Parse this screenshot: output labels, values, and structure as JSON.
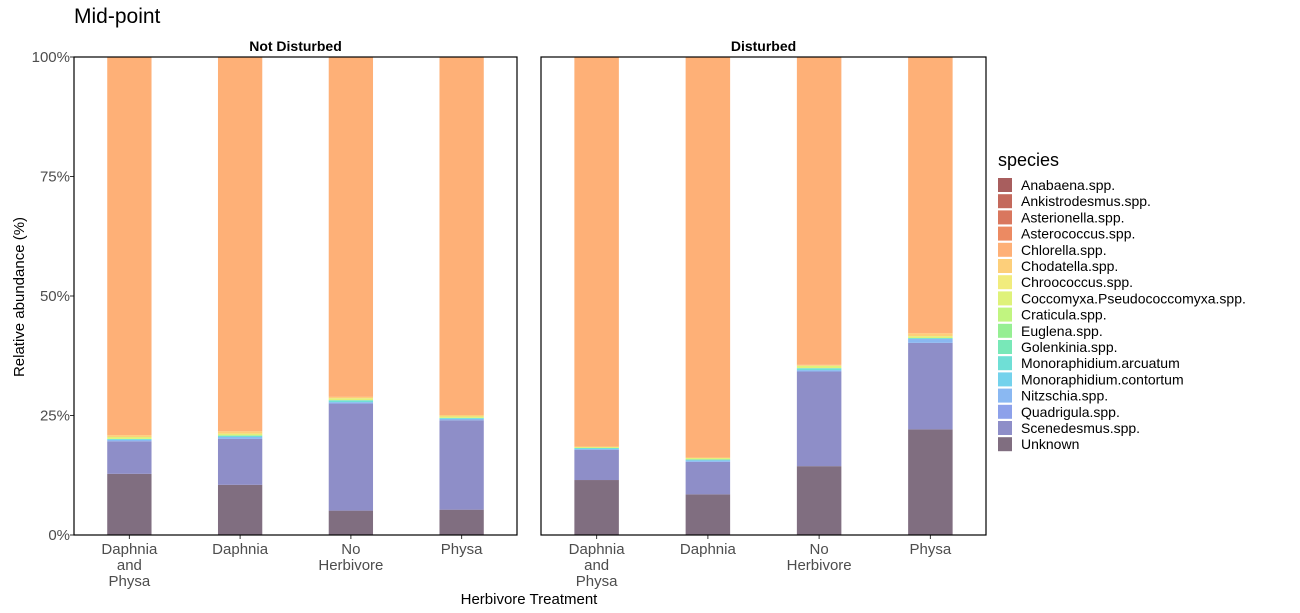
{
  "chart_data": {
    "type": "bar",
    "stacked": true,
    "title": "Mid-point",
    "xlabel": "Herbivore Treatment",
    "ylabel": "Relative abundance (%)",
    "ylim": [
      0,
      100
    ],
    "yticks": [
      "0%",
      "25%",
      "50%",
      "75%",
      "100%"
    ],
    "categories": [
      "Daphnia and Physa",
      "Daphnia",
      "No Herbivore",
      "Physa"
    ],
    "category_lines": [
      [
        "Daphnia",
        "and",
        "Physa"
      ],
      [
        "Daphnia"
      ],
      [
        "No",
        "Herbivore"
      ],
      [
        "Physa"
      ]
    ],
    "legend_title": "species",
    "legend_position": "right",
    "grid": false,
    "panels": [
      {
        "name": "Not Disturbed",
        "series": [
          {
            "name": "Unknown",
            "values": [
              12.8,
              10.5,
              5.1,
              5.3
            ]
          },
          {
            "name": "Scenedesmus.spp.",
            "values": [
              6.8,
              9.6,
              22.4,
              18.7
            ]
          },
          {
            "name": "Quadrigula.spp.",
            "values": [
              0.0,
              0.0,
              0.0,
              0.0
            ]
          },
          {
            "name": "Nitzschia.spp.",
            "values": [
              0.3,
              0.4,
              0.3,
              0.3
            ]
          },
          {
            "name": "Monoraphidium.contortum",
            "values": [
              0.0,
              0.0,
              0.0,
              0.0
            ]
          },
          {
            "name": "Monoraphidium.arcuatum",
            "values": [
              0.2,
              0.3,
              0.4,
              0.2
            ]
          },
          {
            "name": "Golenkinia.spp.",
            "values": [
              0.0,
              0.0,
              0.0,
              0.0
            ]
          },
          {
            "name": "Euglena.spp.",
            "values": [
              0.0,
              0.0,
              0.0,
              0.0
            ]
          },
          {
            "name": "Craticula.spp.",
            "values": [
              0.0,
              0.0,
              0.0,
              0.0
            ]
          },
          {
            "name": "Coccomyxa.Pseudococcomyxa.spp.",
            "values": [
              0.4,
              0.4,
              0.4,
              0.3
            ]
          },
          {
            "name": "Chroococcus.spp.",
            "values": [
              0.0,
              0.0,
              0.0,
              0.0
            ]
          },
          {
            "name": "Chodatella.spp.",
            "values": [
              0.4,
              0.5,
              0.3,
              0.3
            ]
          },
          {
            "name": "Chlorella.spp.",
            "values": [
              79.1,
              78.3,
              71.1,
              74.9
            ]
          },
          {
            "name": "Asterococcus.spp.",
            "values": [
              0.0,
              0.0,
              0.0,
              0.0
            ]
          },
          {
            "name": "Asterionella.spp.",
            "values": [
              0.0,
              0.0,
              0.0,
              0.0
            ]
          },
          {
            "name": "Ankistrodesmus.spp.",
            "values": [
              0.0,
              0.0,
              0.0,
              0.0
            ]
          },
          {
            "name": "Anabaena.spp.",
            "values": [
              0.0,
              0.0,
              0.0,
              0.0
            ]
          }
        ]
      },
      {
        "name": "Disturbed",
        "series": [
          {
            "name": "Unknown",
            "values": [
              11.5,
              8.5,
              14.4,
              22.1
            ]
          },
          {
            "name": "Scenedesmus.spp.",
            "values": [
              6.3,
              6.8,
              19.8,
              18.1
            ]
          },
          {
            "name": "Quadrigula.spp.",
            "values": [
              0.0,
              0.0,
              0.0,
              0.0
            ]
          },
          {
            "name": "Nitzschia.spp.",
            "values": [
              0.2,
              0.3,
              0.3,
              0.8
            ]
          },
          {
            "name": "Monoraphidium.contortum",
            "values": [
              0.0,
              0.0,
              0.0,
              0.0
            ]
          },
          {
            "name": "Monoraphidium.arcuatum",
            "values": [
              0.2,
              0.2,
              0.4,
              0.2
            ]
          },
          {
            "name": "Golenkinia.spp.",
            "values": [
              0.0,
              0.0,
              0.0,
              0.0
            ]
          },
          {
            "name": "Euglena.spp.",
            "values": [
              0.0,
              0.0,
              0.0,
              0.0
            ]
          },
          {
            "name": "Craticula.spp.",
            "values": [
              0.0,
              0.0,
              0.0,
              0.0
            ]
          },
          {
            "name": "Coccomyxa.Pseudococcomyxa.spp.",
            "values": [
              0.2,
              0.3,
              0.5,
              0.4
            ]
          },
          {
            "name": "Chroococcus.spp.",
            "values": [
              0.0,
              0.0,
              0.0,
              0.0
            ]
          },
          {
            "name": "Chodatella.spp.",
            "values": [
              0.1,
              0.1,
              0.2,
              0.6
            ]
          },
          {
            "name": "Chlorella.spp.",
            "values": [
              81.5,
              83.8,
              64.4,
              57.8
            ]
          },
          {
            "name": "Asterococcus.spp.",
            "values": [
              0.0,
              0.0,
              0.0,
              0.0
            ]
          },
          {
            "name": "Asterionella.spp.",
            "values": [
              0.0,
              0.0,
              0.0,
              0.0
            ]
          },
          {
            "name": "Ankistrodesmus.spp.",
            "values": [
              0.0,
              0.0,
              0.0,
              0.0
            ]
          },
          {
            "name": "Anabaena.spp.",
            "values": [
              0.0,
              0.0,
              0.0,
              0.0
            ]
          }
        ]
      }
    ],
    "legend": [
      {
        "name": "Anabaena.spp.",
        "color": "#a85e5e"
      },
      {
        "name": "Ankistrodesmus.spp.",
        "color": "#c4695c"
      },
      {
        "name": "Asterionella.spp.",
        "color": "#d9775e"
      },
      {
        "name": "Asterococcus.spp.",
        "color": "#ec8a62"
      },
      {
        "name": "Chlorella.spp.",
        "color": "#feb077"
      },
      {
        "name": "Chodatella.spp.",
        "color": "#fdcf7a"
      },
      {
        "name": "Chroococcus.spp.",
        "color": "#f1ec7d"
      },
      {
        "name": "Coccomyxa.Pseudococcomyxa.spp.",
        "color": "#dff27a"
      },
      {
        "name": "Craticula.spp.",
        "color": "#c1f580"
      },
      {
        "name": "Euglena.spp.",
        "color": "#96ef93"
      },
      {
        "name": "Golenkinia.spp.",
        "color": "#78e8b8"
      },
      {
        "name": "Monoraphidium.arcuatum",
        "color": "#6fdfd6"
      },
      {
        "name": "Monoraphidium.contortum",
        "color": "#74d2ec"
      },
      {
        "name": "Nitzschia.spp.",
        "color": "#8ab8f2"
      },
      {
        "name": "Quadrigula.spp.",
        "color": "#8da1ea"
      },
      {
        "name": "Scenedesmus.spp.",
        "color": "#8e8ec8"
      },
      {
        "name": "Unknown",
        "color": "#806e80"
      }
    ]
  }
}
